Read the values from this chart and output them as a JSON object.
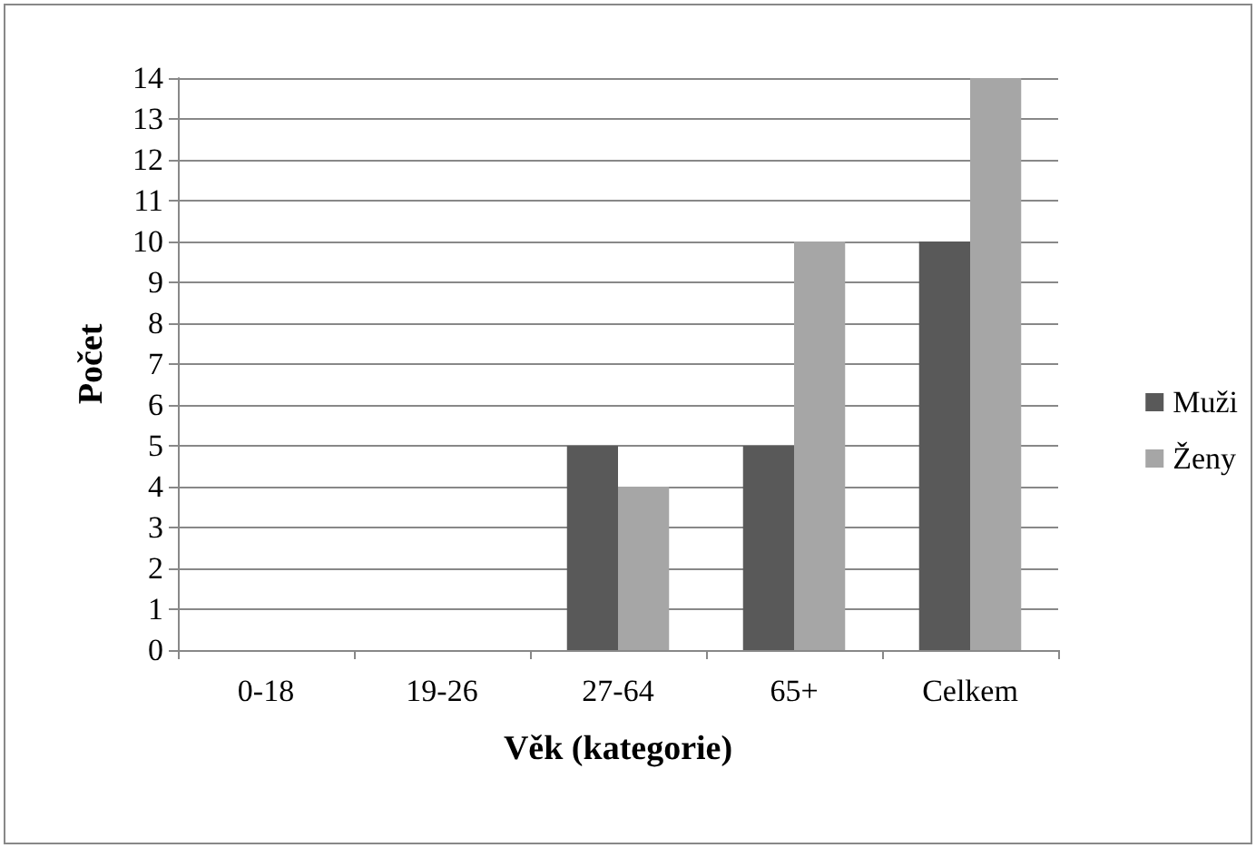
{
  "chart_data": {
    "type": "bar",
    "xlabel": "Věk (kategorie)",
    "ylabel": "Počet",
    "categories": [
      "0-18",
      "19-26",
      "27-64",
      "65+",
      "Celkem"
    ],
    "series": [
      {
        "name": "Muži",
        "color": "#595959",
        "values": [
          0,
          0,
          5,
          5,
          10
        ]
      },
      {
        "name": "Ženy",
        "color": "#a6a6a6",
        "values": [
          0,
          0,
          4,
          10,
          14
        ]
      }
    ],
    "ylim": [
      0,
      14
    ],
    "yticks": [
      0,
      1,
      2,
      3,
      4,
      5,
      6,
      7,
      8,
      9,
      10,
      11,
      12,
      13,
      14
    ],
    "grid": "y",
    "legend": "right"
  }
}
